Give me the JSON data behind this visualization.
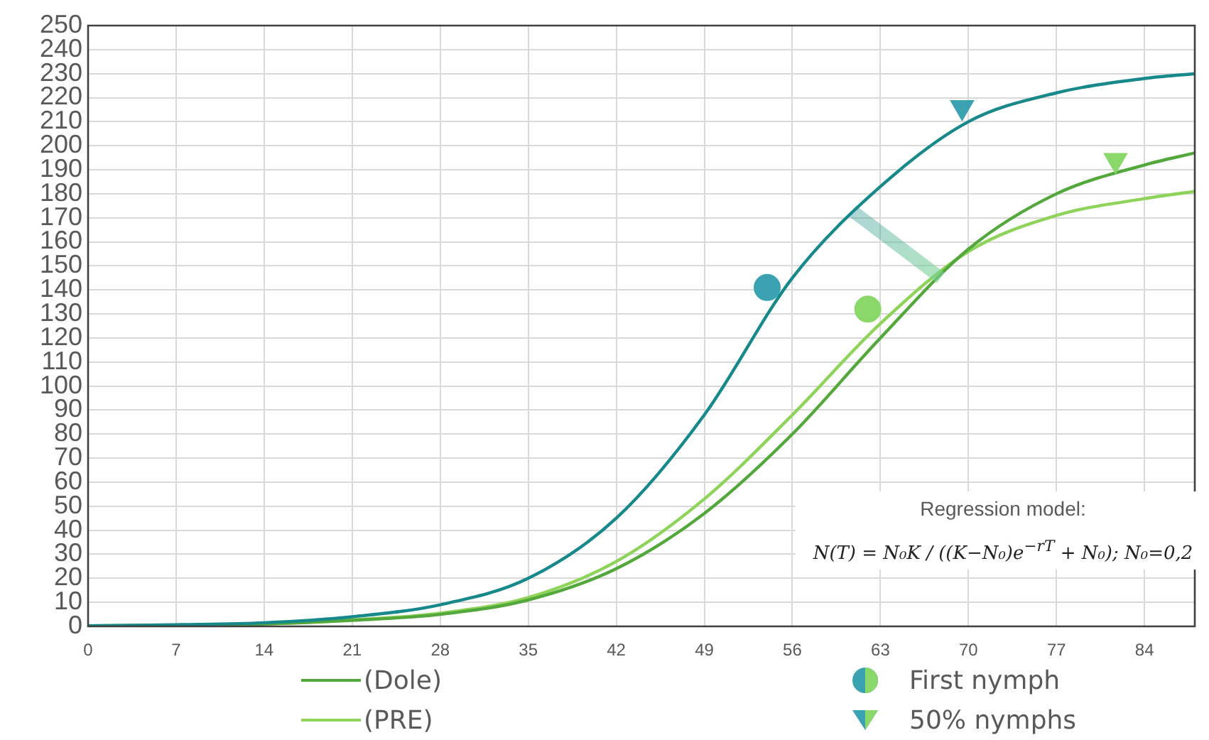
{
  "chart_data": {
    "type": "line",
    "x": [
      0,
      7,
      14,
      21,
      28,
      35,
      42,
      49,
      56,
      63,
      70,
      77,
      84,
      88
    ],
    "series": [
      {
        "color": "#17898a",
        "values": [
          0.2,
          0.7,
          1.5,
          4,
          9,
          20,
          45,
          88,
          145,
          183,
          210,
          222,
          228,
          230
        ]
      },
      {
        "name": "(Dole)",
        "color": "#52a83a",
        "values": [
          0.2,
          0.5,
          1,
          2.5,
          5,
          11,
          24,
          47,
          80,
          120,
          157,
          180,
          192,
          197
        ]
      },
      {
        "name": "(PRE)",
        "color": "#8fd45a",
        "values": [
          0.2,
          0.5,
          1,
          2.7,
          5.5,
          12,
          27,
          53,
          88,
          126,
          156,
          171,
          178,
          181
        ]
      },
      {
        "name": "First nymph",
        "type": "scatter",
        "marker": "circle",
        "colors": [
          "#3aa2b0",
          "#8bd86a"
        ],
        "x": [
          54,
          62
        ],
        "values": [
          141,
          132
        ]
      },
      {
        "name": "50% nymphs",
        "type": "scatter",
        "marker": "triangle",
        "colors": [
          "#3aa2b0",
          "#8bd86a"
        ],
        "x": [
          69.5,
          81.7
        ],
        "values": [
          216,
          194
        ]
      }
    ],
    "xlim": [
      0,
      88
    ],
    "xticks": [
      0,
      7,
      14,
      21,
      28,
      35,
      42,
      49,
      56,
      63,
      70,
      77,
      84
    ],
    "ylim": [
      0,
      250
    ],
    "yticks": [
      0,
      10,
      20,
      30,
      40,
      50,
      60,
      70,
      80,
      90,
      100,
      110,
      120,
      130,
      140,
      150,
      160,
      170,
      180,
      190,
      200,
      210,
      220,
      230,
      240,
      250
    ],
    "grid": true,
    "legend": "bottom",
    "annotations": [
      "Regression model:",
      "N(T) = N₀K / ((K−N₀)e$^{−rT}$ + N₀);  N₀=0,2"
    ]
  }
}
